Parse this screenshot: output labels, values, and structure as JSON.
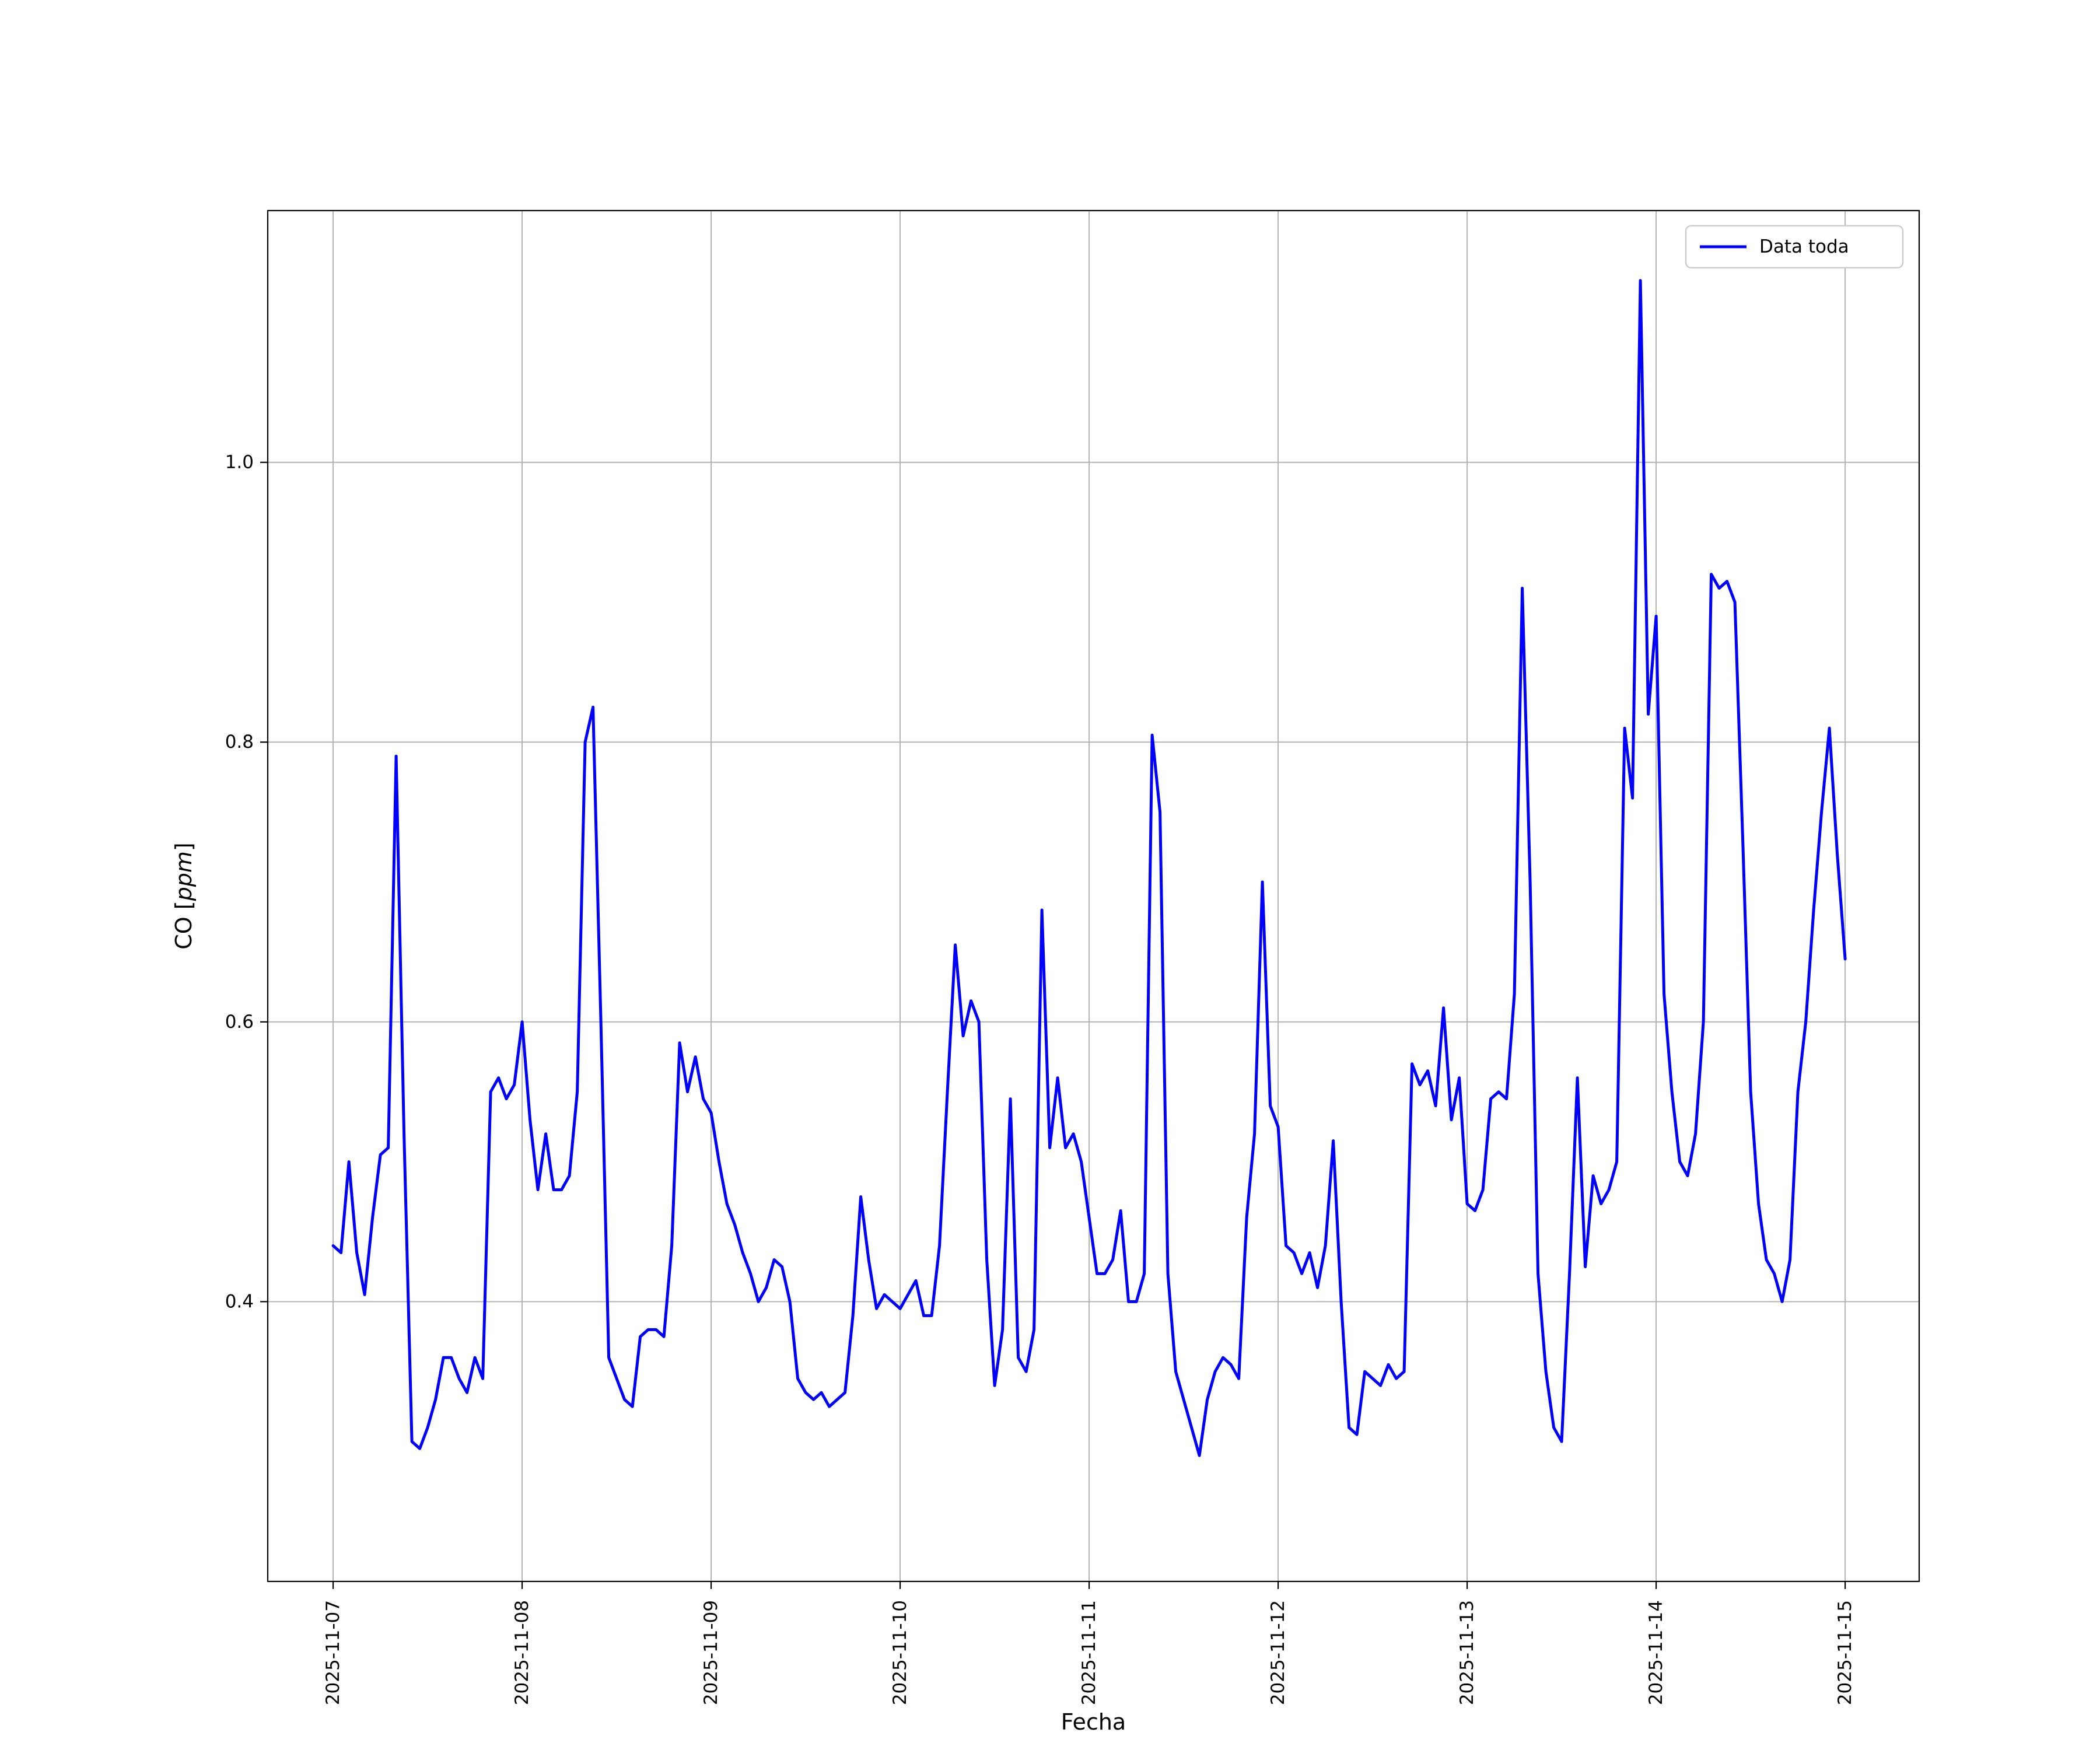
{
  "figure": {
    "title": "",
    "background": "#ffffff"
  },
  "chart_data": {
    "type": "line",
    "title": "",
    "xlabel": "Fecha",
    "ylabel": "CO [ppm]",
    "ylabel_parts": [
      {
        "text": "CO [",
        "italic": false
      },
      {
        "text": "ppm",
        "italic": true
      },
      {
        "text": "]",
        "italic": false
      }
    ],
    "legend": {
      "position": "upper right",
      "entries": [
        "Data toda"
      ]
    },
    "grid": true,
    "grid_color": "#b0b0b0",
    "axes_edge_color": "#000000",
    "background": "#ffffff",
    "x_tick_labels": [
      "2025-11-07",
      "2025-11-08",
      "2025-11-09",
      "2025-11-10",
      "2025-11-11",
      "2025-11-12",
      "2025-11-13",
      "2025-11-14",
      "2025-11-15"
    ],
    "x_tick_hours": [
      0,
      24,
      48,
      72,
      96,
      120,
      144,
      168,
      192
    ],
    "y_ticks": [
      0.4,
      0.6,
      0.8,
      1.0
    ],
    "y_tick_labels": [
      "0.4",
      "0.6",
      "0.8",
      "1.0"
    ],
    "ylim": [
      0.2,
      1.18
    ],
    "xlim_hours": [
      -8.3,
      201.4
    ],
    "x_encoding": {
      "start": "2025-11-07 00:00",
      "step_hours": 1
    },
    "series": [
      {
        "name": "Data toda",
        "color": "#0000ff",
        "values": [
          0.44,
          0.435,
          0.5,
          0.435,
          0.405,
          0.46,
          0.505,
          0.51,
          0.79,
          0.52,
          0.3,
          0.295,
          0.31,
          0.33,
          0.36,
          0.36,
          0.345,
          0.335,
          0.36,
          0.345,
          0.55,
          0.56,
          0.545,
          0.555,
          0.6,
          0.53,
          0.48,
          0.52,
          0.48,
          0.48,
          0.49,
          0.55,
          0.8,
          0.825,
          0.6,
          0.36,
          0.345,
          0.33,
          0.325,
          0.375,
          0.38,
          0.38,
          0.375,
          0.44,
          0.585,
          0.55,
          0.575,
          0.545,
          0.535,
          0.5,
          0.47,
          0.455,
          0.435,
          0.42,
          0.4,
          0.41,
          0.43,
          0.425,
          0.4,
          0.345,
          0.335,
          0.33,
          0.335,
          0.325,
          0.33,
          0.335,
          0.39,
          0.475,
          0.43,
          0.395,
          0.405,
          0.4,
          0.395,
          0.405,
          0.415,
          0.39,
          0.39,
          0.44,
          0.55,
          0.655,
          0.59,
          0.615,
          0.6,
          0.43,
          0.34,
          0.38,
          0.545,
          0.36,
          0.35,
          0.38,
          0.68,
          0.51,
          0.56,
          0.51,
          0.52,
          0.5,
          0.46,
          0.42,
          0.42,
          0.43,
          0.465,
          0.4,
          0.4,
          0.42,
          0.805,
          0.75,
          0.42,
          0.35,
          0.33,
          0.31,
          0.29,
          0.33,
          0.35,
          0.36,
          0.355,
          0.345,
          0.46,
          0.52,
          0.7,
          0.54,
          0.525,
          0.44,
          0.435,
          0.42,
          0.435,
          0.41,
          0.44,
          0.515,
          0.4,
          0.31,
          0.305,
          0.35,
          0.345,
          0.34,
          0.355,
          0.345,
          0.35,
          0.57,
          0.555,
          0.565,
          0.54,
          0.61,
          0.53,
          0.56,
          0.47,
          0.465,
          0.48,
          0.545,
          0.55,
          0.545,
          0.62,
          0.91,
          0.7,
          0.42,
          0.35,
          0.31,
          0.3,
          0.42,
          0.56,
          0.425,
          0.49,
          0.47,
          0.48,
          0.5,
          0.81,
          0.76,
          1.13,
          0.82,
          0.89,
          0.62,
          0.55,
          0.5,
          0.49,
          0.52,
          0.6,
          0.92,
          0.91,
          0.915,
          0.9,
          0.73,
          0.55,
          0.47,
          0.43,
          0.42,
          0.4,
          0.43,
          0.55,
          0.6,
          0.68,
          0.75,
          0.81,
          0.72,
          0.645
        ]
      }
    ]
  }
}
